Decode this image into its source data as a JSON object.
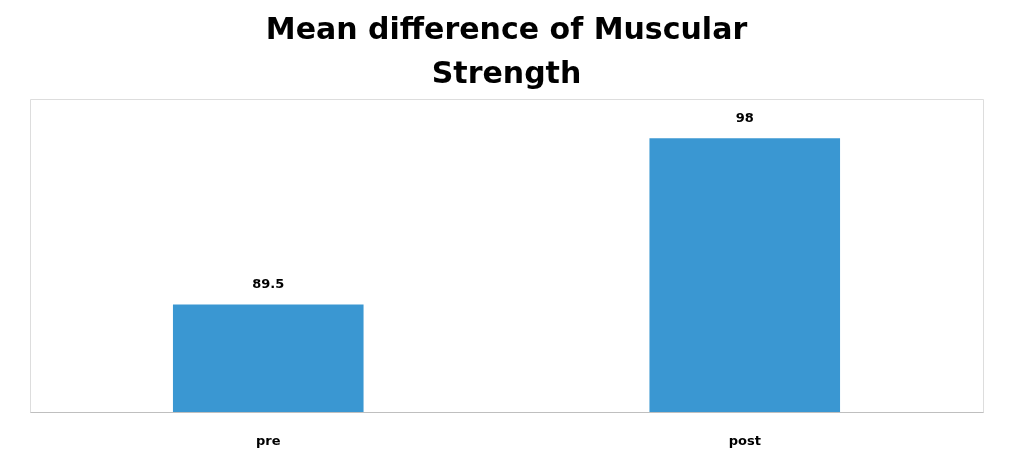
{
  "chart_data": {
    "type": "bar",
    "title": "Mean difference of Muscular Strength",
    "categories": [
      "pre",
      "post"
    ],
    "values": [
      89.5,
      98
    ],
    "color": "#3a97d2",
    "ylim": [
      84,
      100
    ],
    "tick_labels": "x",
    "grid": false,
    "data_labels": true
  }
}
